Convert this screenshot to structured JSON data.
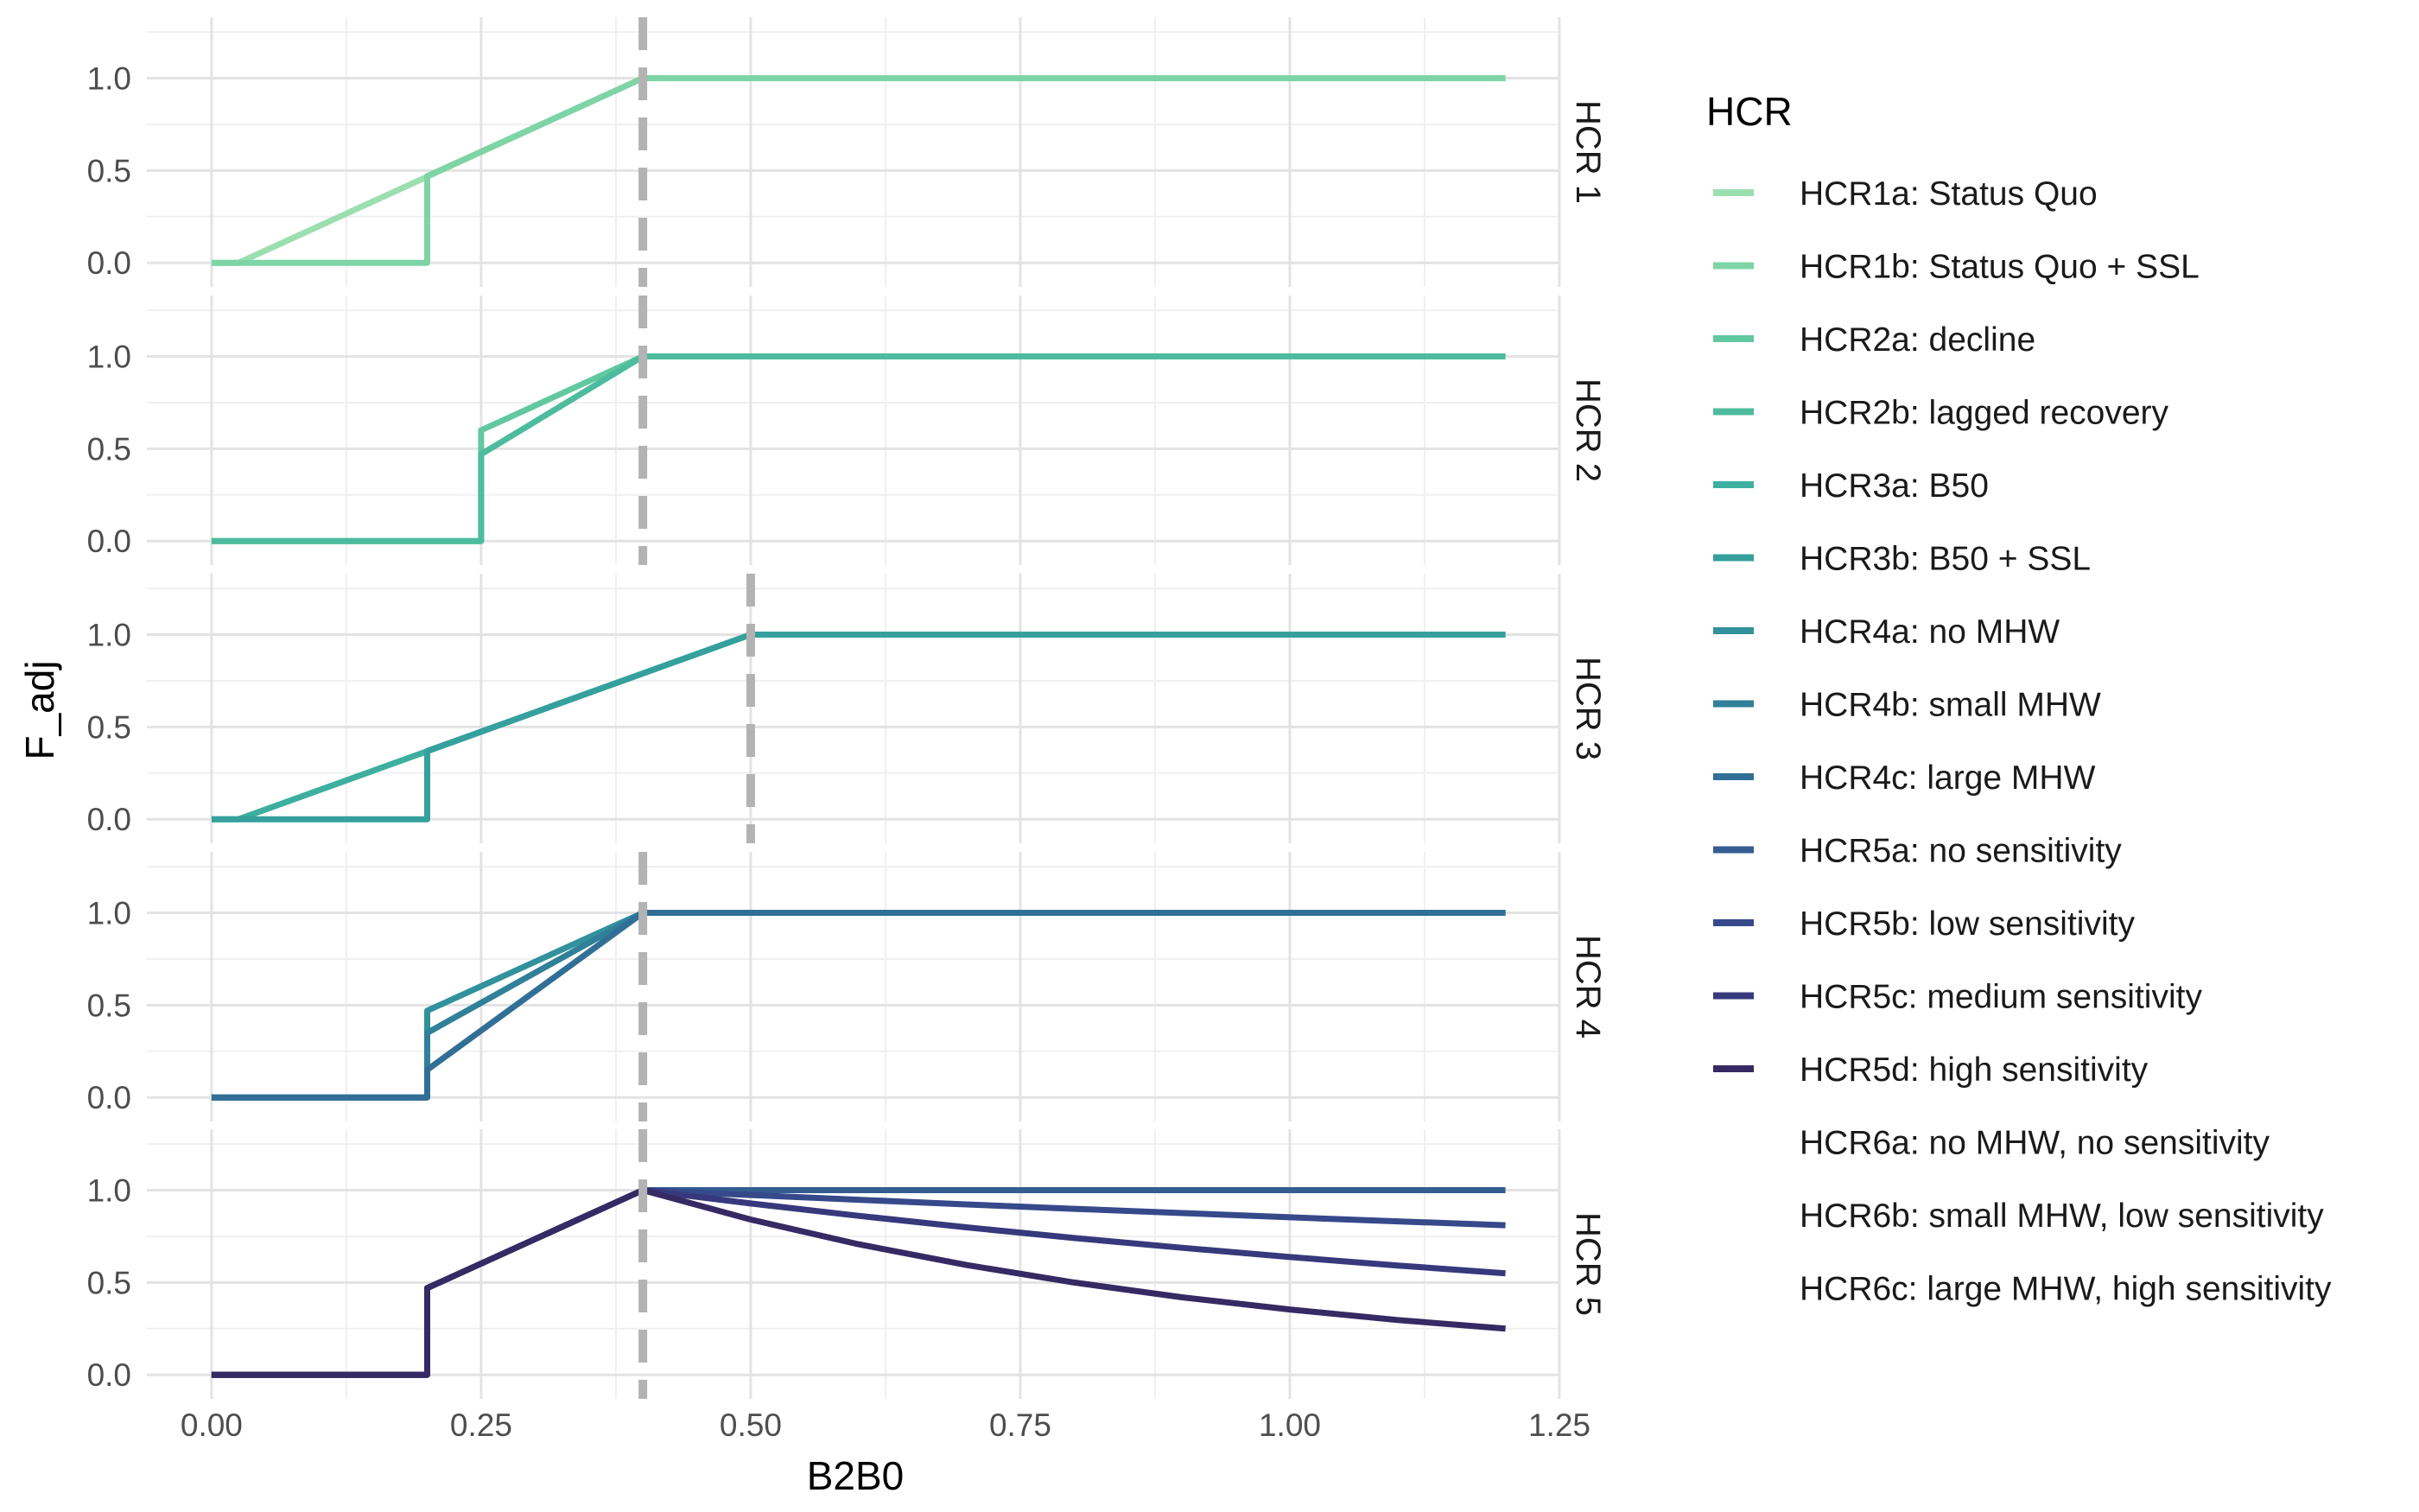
{
  "chart_data": {
    "type": "line",
    "xlabel": "B2B0",
    "ylabel": "F_adj",
    "xlim": [
      -0.06,
      1.25
    ],
    "ylim": [
      -0.13,
      1.33
    ],
    "x_ticks": [
      0.0,
      0.25,
      0.5,
      0.75,
      1.0,
      1.25
    ],
    "x_tick_labels": [
      "0.00",
      "0.25",
      "0.50",
      "0.75",
      "1.00",
      "1.25"
    ],
    "y_ticks": [
      0.0,
      0.5,
      1.0
    ],
    "y_tick_labels": [
      "0.0",
      "0.5",
      "1.0"
    ],
    "grid": true,
    "legend_title": "HCR",
    "legend_position": "right",
    "legend": [
      {
        "label": "HCR1a: Status Quo",
        "color": "#9bdfb0",
        "shown": true
      },
      {
        "label": "HCR1b: Status Quo + SSL",
        "color": "#7ed4a6",
        "shown": true
      },
      {
        "label": "HCR2a: decline",
        "color": "#62c8a0",
        "shown": true
      },
      {
        "label": "HCR2b: lagged recovery",
        "color": "#4dbb9e",
        "shown": true
      },
      {
        "label": "HCR3a: B50",
        "color": "#3daf9f",
        "shown": true
      },
      {
        "label": "HCR3b: B50 + SSL",
        "color": "#35a09e",
        "shown": true
      },
      {
        "label": "HCR4a: no MHW",
        "color": "#31919c",
        "shown": true
      },
      {
        "label": "HCR4b: small MHW",
        "color": "#308099",
        "shown": true
      },
      {
        "label": "HCR4c: large MHW",
        "color": "#316f96",
        "shown": true
      },
      {
        "label": "HCR5a: no sensitivity",
        "color": "#345d91",
        "shown": true
      },
      {
        "label": "HCR5b: low sensitivity",
        "color": "#36498a",
        "shown": true
      },
      {
        "label": "HCR5c: medium sensitivity",
        "color": "#37397c",
        "shown": true
      },
      {
        "label": "HCR5d: high sensitivity",
        "color": "#352a63",
        "shown": true
      },
      {
        "label": "HCR6a: no MHW, no sensitivity",
        "color": "#ffffff",
        "shown": false
      },
      {
        "label": "HCR6b: small MHW, low sensitivity",
        "color": "#ffffff",
        "shown": false
      },
      {
        "label": "HCR6c: large MHW, high sensitivity",
        "color": "#ffffff",
        "shown": false
      }
    ],
    "ref_line_color": "#b3b3b3",
    "panels": [
      {
        "strip": "HCR 1",
        "ref_line_x": 0.4,
        "series": [
          {
            "name": "HCR1a: Status Quo",
            "color": "#9bdfb0",
            "x": [
              0.0,
              0.025,
              0.4,
              1.2
            ],
            "y": [
              0.0,
              0.0,
              1.0,
              1.0
            ]
          },
          {
            "name": "HCR1b: Status Quo + SSL",
            "color": "#7ed4a6",
            "x": [
              0.0,
              0.2,
              0.2,
              0.4,
              1.2
            ],
            "y": [
              0.0,
              0.0,
              0.47,
              1.0,
              1.0
            ]
          }
        ]
      },
      {
        "strip": "HCR 2",
        "ref_line_x": 0.4,
        "series": [
          {
            "name": "HCR2a: decline",
            "color": "#62c8a0",
            "x": [
              0.0,
              0.25,
              0.25,
              0.4,
              1.2
            ],
            "y": [
              0.0,
              0.0,
              0.6,
              1.0,
              1.0
            ]
          },
          {
            "name": "HCR2b: lagged recovery",
            "color": "#4dbb9e",
            "x": [
              0.0,
              0.25,
              0.25,
              0.4,
              1.2
            ],
            "y": [
              0.0,
              0.0,
              0.47,
              1.0,
              1.0
            ]
          }
        ]
      },
      {
        "strip": "HCR 3",
        "ref_line_x": 0.5,
        "series": [
          {
            "name": "HCR3a: B50",
            "color": "#3daf9f",
            "x": [
              0.0,
              0.025,
              0.5,
              1.2
            ],
            "y": [
              0.0,
              0.0,
              1.0,
              1.0
            ]
          },
          {
            "name": "HCR3b: B50 + SSL",
            "color": "#35a09e",
            "x": [
              0.0,
              0.2,
              0.2,
              0.5,
              1.2
            ],
            "y": [
              0.0,
              0.0,
              0.37,
              1.0,
              1.0
            ]
          }
        ]
      },
      {
        "strip": "HCR 4",
        "ref_line_x": 0.4,
        "series": [
          {
            "name": "HCR4a: no MHW",
            "color": "#31919c",
            "x": [
              0.0,
              0.2,
              0.2,
              0.4,
              1.2
            ],
            "y": [
              0.0,
              0.0,
              0.47,
              1.0,
              1.0
            ]
          },
          {
            "name": "HCR4b: small MHW",
            "color": "#308099",
            "x": [
              0.0,
              0.2,
              0.2,
              0.4,
              1.2
            ],
            "y": [
              0.0,
              0.0,
              0.35,
              1.0,
              1.0
            ]
          },
          {
            "name": "HCR4c: large MHW",
            "color": "#316f96",
            "x": [
              0.0,
              0.2,
              0.2,
              0.4,
              1.2
            ],
            "y": [
              0.0,
              0.0,
              0.15,
              1.0,
              1.0
            ]
          }
        ]
      },
      {
        "strip": "HCR 5",
        "ref_line_x": 0.4,
        "series": [
          {
            "name": "HCR5a: no sensitivity",
            "color": "#345d91",
            "x": [
              0.0,
              0.2,
              0.2,
              0.4,
              1.2
            ],
            "y": [
              0.0,
              0.0,
              0.47,
              1.0,
              1.0
            ]
          },
          {
            "name": "HCR5b: low sensitivity",
            "color": "#36498a",
            "x": [
              0.0,
              0.2,
              0.2,
              0.4,
              0.5,
              0.6,
              0.7,
              0.8,
              0.9,
              1.0,
              1.1,
              1.2
            ],
            "y": [
              0.0,
              0.0,
              0.47,
              1.0,
              0.974,
              0.948,
              0.923,
              0.899,
              0.876,
              0.853,
              0.831,
              0.81
            ]
          },
          {
            "name": "HCR5c: medium sensitivity",
            "color": "#37397c",
            "x": [
              0.0,
              0.2,
              0.2,
              0.4,
              0.5,
              0.6,
              0.7,
              0.8,
              0.9,
              1.0,
              1.1,
              1.2
            ],
            "y": [
              0.0,
              0.0,
              0.47,
              1.0,
              0.928,
              0.861,
              0.799,
              0.741,
              0.688,
              0.638,
              0.592,
              0.55
            ]
          },
          {
            "name": "HCR5d: high sensitivity",
            "color": "#352a63",
            "x": [
              0.0,
              0.2,
              0.2,
              0.4,
              0.5,
              0.6,
              0.7,
              0.8,
              0.9,
              1.0,
              1.1,
              1.2
            ],
            "y": [
              0.0,
              0.0,
              0.47,
              1.0,
              0.841,
              0.707,
              0.595,
              0.5,
              0.42,
              0.354,
              0.297,
              0.25
            ]
          }
        ]
      }
    ]
  }
}
